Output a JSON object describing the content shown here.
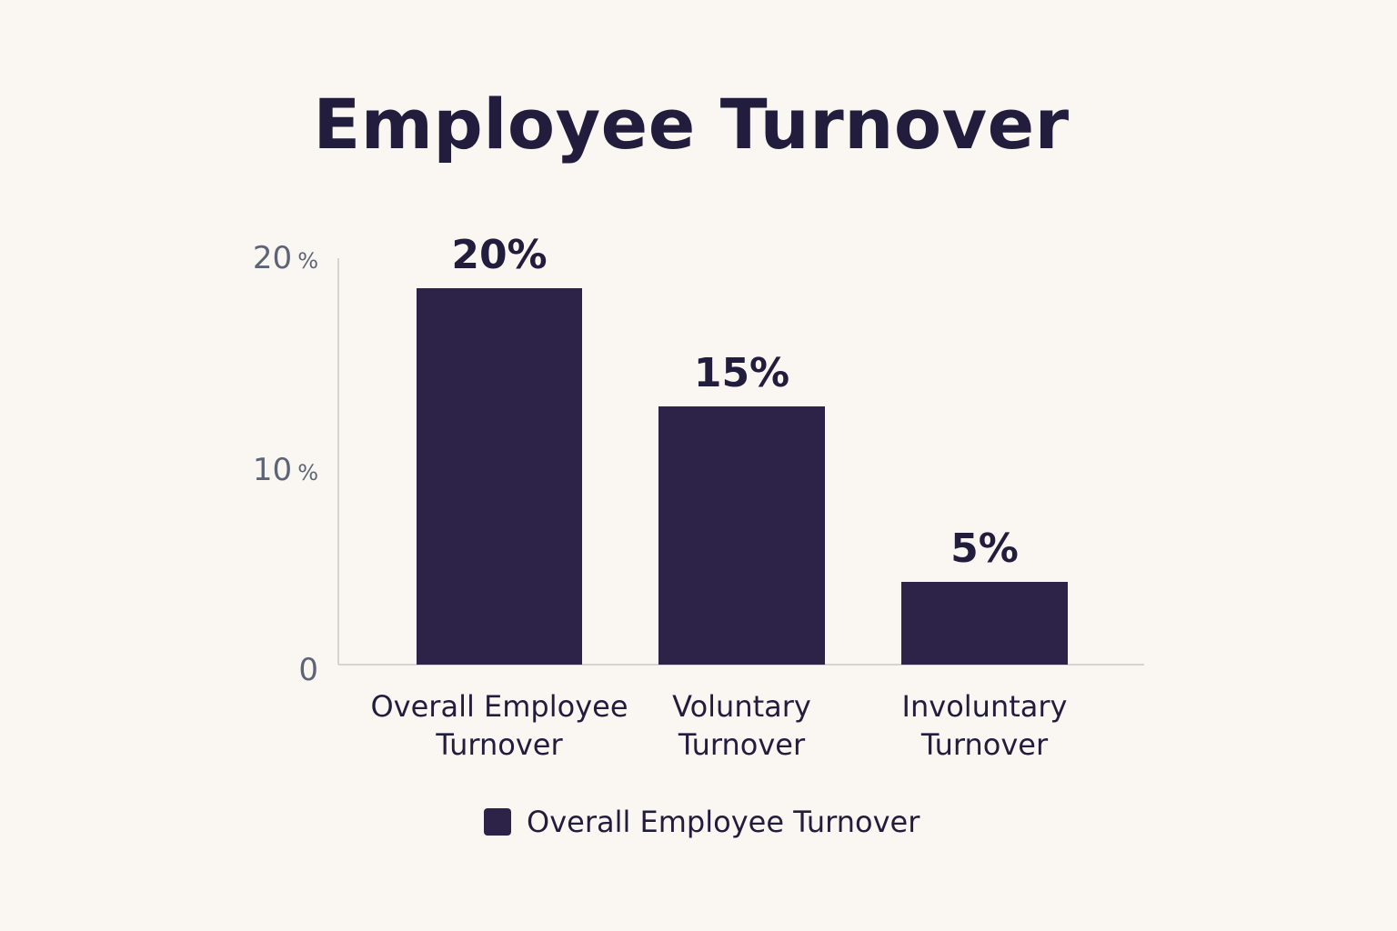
{
  "chart_data": {
    "type": "bar",
    "title": "Employee Turnover",
    "categories": [
      [
        "Overall Employee",
        "Turnover"
      ],
      [
        "Voluntary",
        "Turnover"
      ],
      [
        "Involuntary",
        "Turnover"
      ]
    ],
    "values": [
      20,
      15,
      5
    ],
    "value_labels": [
      "20%",
      "15%",
      "5%"
    ],
    "yticks": [
      {
        "value": 0,
        "label": "0",
        "unit": ""
      },
      {
        "value": 10,
        "label": "10",
        "unit": "%"
      },
      {
        "value": 20,
        "label": "20",
        "unit": "%"
      }
    ],
    "ylim": [
      0,
      20
    ],
    "grid": false,
    "legend": {
      "position": "bottom",
      "entries": [
        {
          "label": "Overall Employee Turnover"
        }
      ]
    },
    "colors": {
      "bar": "#2d2348",
      "axis": "#d6d3d0",
      "text": "#221c3d",
      "tick": "#5d6475",
      "background": "#faf7f3"
    }
  }
}
